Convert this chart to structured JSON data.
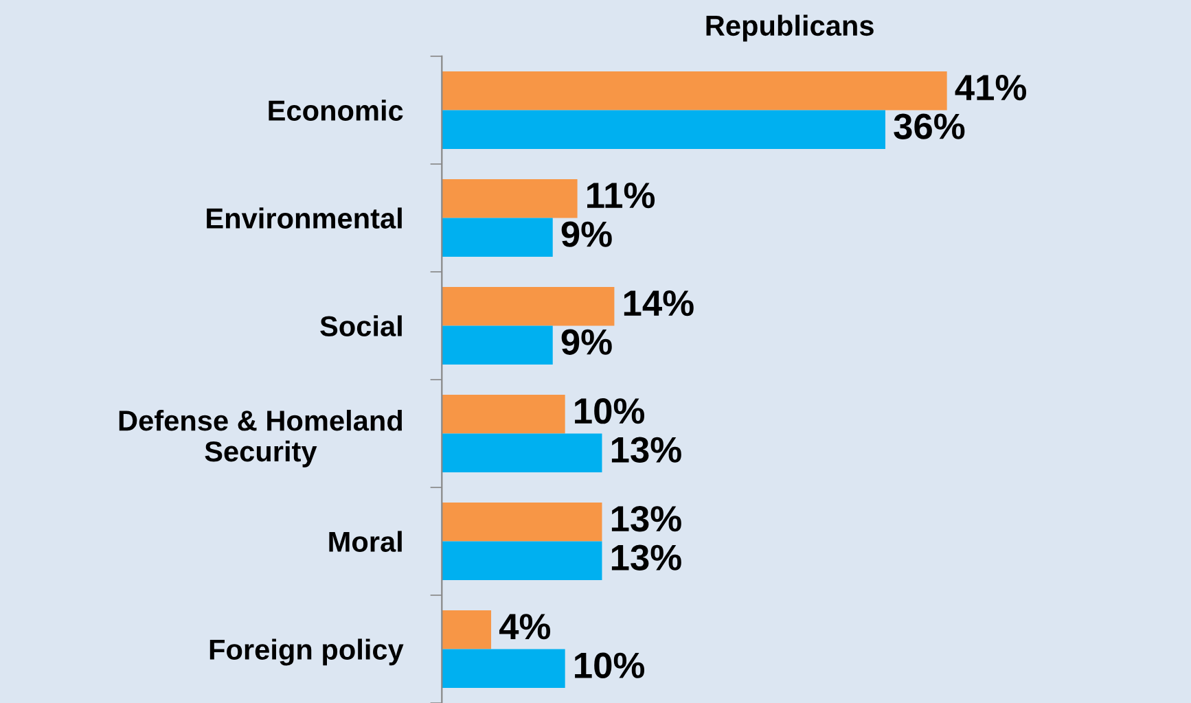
{
  "chart_data": {
    "type": "bar",
    "orientation": "horizontal",
    "title": "Republicans",
    "categories": [
      "Economic",
      "Environmental",
      "Social",
      "Defense & Homeland\nSecurity",
      "Moral",
      "Foreign policy"
    ],
    "series": [
      {
        "color": "#f79646",
        "values": [
          41,
          11,
          14,
          10,
          13,
          4
        ],
        "value_labels": [
          "41%",
          "11%",
          "14%",
          "10%",
          "13%",
          "4%"
        ]
      },
      {
        "color": "#00b0f0",
        "values": [
          36,
          9,
          9,
          13,
          13,
          10
        ],
        "value_labels": [
          "36%",
          "9%",
          "9%",
          "13%",
          "13%",
          "10%"
        ]
      }
    ],
    "tick_labels": "y",
    "grid": false,
    "legend": false
  }
}
